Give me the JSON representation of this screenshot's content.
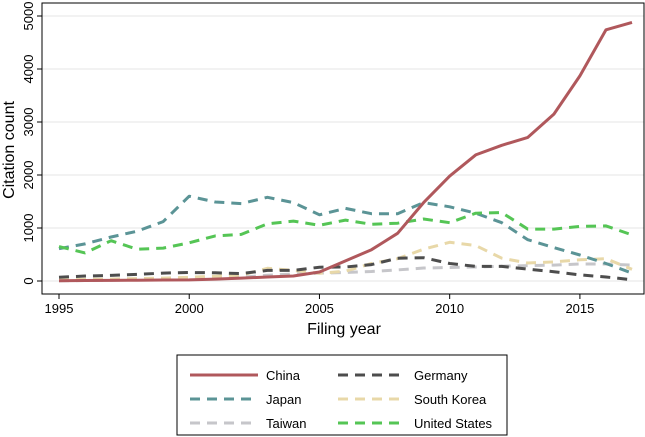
{
  "chart_data": {
    "type": "line",
    "xlabel": "Filing year",
    "ylabel": "Citation count",
    "xlim": [
      1995,
      2017
    ],
    "ylim": [
      0,
      5000
    ],
    "xticks": [
      1995,
      2000,
      2005,
      2010,
      2015
    ],
    "yticks": [
      0,
      1000,
      2000,
      3000,
      4000,
      5000
    ],
    "grid": true,
    "legend_position": "bottom",
    "x": [
      1995,
      1996,
      1997,
      1998,
      1999,
      2000,
      2001,
      2002,
      2003,
      2004,
      2005,
      2006,
      2007,
      2008,
      2009,
      2010,
      2011,
      2012,
      2013,
      2014,
      2015,
      2016,
      2017
    ],
    "series": [
      {
        "name": "China",
        "color": "#b0585c",
        "dash": "solid",
        "values": [
          5,
          10,
          12,
          15,
          18,
          20,
          35,
          55,
          75,
          95,
          170,
          380,
          590,
          900,
          1480,
          1980,
          2380,
          2560,
          2710,
          3150,
          3870,
          4740,
          4880
        ]
      },
      {
        "name": "Germany",
        "color": "#4d4d4d",
        "dash": "dashed",
        "values": [
          70,
          95,
          105,
          125,
          150,
          160,
          155,
          140,
          200,
          200,
          260,
          265,
          310,
          430,
          440,
          330,
          275,
          275,
          225,
          175,
          115,
          75,
          25
        ]
      },
      {
        "name": "Japan",
        "color": "#5b9496",
        "dash": "dashed",
        "values": [
          610,
          700,
          830,
          940,
          1120,
          1600,
          1490,
          1460,
          1580,
          1480,
          1250,
          1370,
          1270,
          1270,
          1480,
          1400,
          1280,
          1100,
          780,
          630,
          490,
          330,
          150
        ]
      },
      {
        "name": "South Korea",
        "color": "#e8d8a8",
        "dash": "dashed",
        "values": [
          20,
          30,
          35,
          45,
          55,
          70,
          90,
          110,
          240,
          200,
          145,
          185,
          330,
          420,
          600,
          730,
          670,
          430,
          340,
          360,
          400,
          420,
          220
        ]
      },
      {
        "name": "Taiwan",
        "color": "#c6c6ca",
        "dash": "dashed",
        "values": [
          5,
          10,
          15,
          20,
          30,
          45,
          55,
          70,
          110,
          130,
          150,
          160,
          180,
          210,
          245,
          255,
          265,
          280,
          290,
          300,
          320,
          320,
          300
        ]
      },
      {
        "name": "United States",
        "color": "#55c555",
        "dash": "dashed",
        "values": [
          650,
          530,
          760,
          600,
          620,
          720,
          850,
          880,
          1080,
          1130,
          1050,
          1150,
          1070,
          1090,
          1170,
          1100,
          1280,
          1290,
          980,
          980,
          1030,
          1040,
          870
        ]
      }
    ]
  }
}
